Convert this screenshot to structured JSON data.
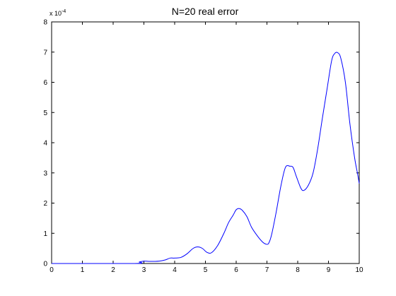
{
  "chart_data": {
    "type": "line",
    "title": "N=20 real error",
    "xlabel": "",
    "ylabel": "",
    "xlim": [
      0,
      10
    ],
    "ylim": [
      0,
      8
    ],
    "x_ticks": [
      "0",
      "1",
      "2",
      "3",
      "4",
      "5",
      "6",
      "7",
      "8",
      "9",
      "10"
    ],
    "y_ticks": [
      "0",
      "1",
      "2",
      "3",
      "4",
      "5",
      "6",
      "7",
      "8"
    ],
    "y_multiplier": {
      "base": "x 10",
      "exponent": "-4"
    },
    "grid": false,
    "line_color": "#0000ff",
    "series": [
      {
        "x": [
          0,
          2.7,
          2.85,
          3.0,
          3.2,
          3.5,
          3.7,
          3.85,
          4.0,
          4.2,
          4.4,
          4.6,
          4.75,
          4.9,
          5.05,
          5.2,
          5.4,
          5.6,
          5.75,
          5.9,
          6.0,
          6.1,
          6.2,
          6.35,
          6.5,
          6.7,
          6.85,
          6.95,
          7.05,
          7.15,
          7.3,
          7.45,
          7.6,
          7.75,
          7.85,
          7.95,
          8.1,
          8.2,
          8.35,
          8.5,
          8.65,
          8.8,
          8.95,
          9.1,
          9.2,
          9.3,
          9.4,
          9.55,
          9.7,
          9.85,
          9.95,
          10.0
        ],
        "y": [
          0,
          0,
          0.05,
          0.08,
          0.07,
          0.08,
          0.12,
          0.18,
          0.18,
          0.2,
          0.32,
          0.5,
          0.55,
          0.5,
          0.37,
          0.36,
          0.6,
          1.0,
          1.35,
          1.6,
          1.78,
          1.82,
          1.76,
          1.55,
          1.2,
          0.9,
          0.72,
          0.65,
          0.66,
          0.95,
          1.7,
          2.55,
          3.18,
          3.22,
          3.18,
          2.9,
          2.5,
          2.42,
          2.6,
          3.0,
          3.8,
          4.8,
          5.75,
          6.7,
          6.95,
          6.98,
          6.8,
          6.0,
          4.6,
          3.5,
          2.95,
          2.65
        ]
      }
    ]
  }
}
